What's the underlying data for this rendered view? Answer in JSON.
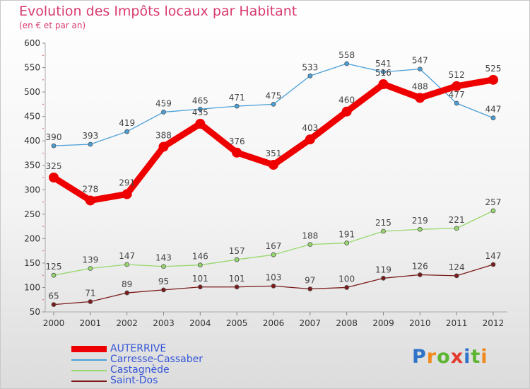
{
  "title": "Evolution des Impôts locaux par Habitant",
  "subtitle": "(en € et par an)",
  "logo": {
    "text": "Proxiti",
    "letter_colors": [
      "#2f74c9",
      "#f08a1c",
      "#5eb532",
      "#e23a2e",
      "#2f74c9",
      "#5eb532",
      "#f08a1c"
    ]
  },
  "chart_data": {
    "type": "line",
    "x": [
      2000,
      2001,
      2002,
      2003,
      2004,
      2005,
      2006,
      2007,
      2008,
      2009,
      2010,
      2011,
      2012
    ],
    "ylim": [
      50,
      600
    ],
    "yticks": [
      50,
      100,
      150,
      200,
      250,
      300,
      350,
      400,
      450,
      500,
      550,
      600
    ],
    "grid": false,
    "legend_position": "bottom-left",
    "series": [
      {
        "name": "AUTERRIVE",
        "color": "#ee0000",
        "thick": true,
        "values": [
          325,
          278,
          291,
          388,
          435,
          376,
          351,
          403,
          460,
          516,
          488,
          512,
          525
        ]
      },
      {
        "name": "Carresse-Cassaber",
        "color": "#4a9fd8",
        "thick": false,
        "values": [
          390,
          393,
          419,
          459,
          465,
          471,
          475,
          533,
          558,
          541,
          547,
          477,
          447
        ]
      },
      {
        "name": "Castagnède",
        "color": "#97d86c",
        "thick": false,
        "values": [
          125,
          139,
          147,
          143,
          146,
          157,
          167,
          188,
          191,
          215,
          219,
          221,
          257
        ]
      },
      {
        "name": "Saint-Dos",
        "color": "#7b1a1a",
        "thick": false,
        "values": [
          65,
          71,
          89,
          95,
          101,
          101,
          103,
          97,
          100,
          119,
          126,
          124,
          147
        ]
      }
    ]
  }
}
